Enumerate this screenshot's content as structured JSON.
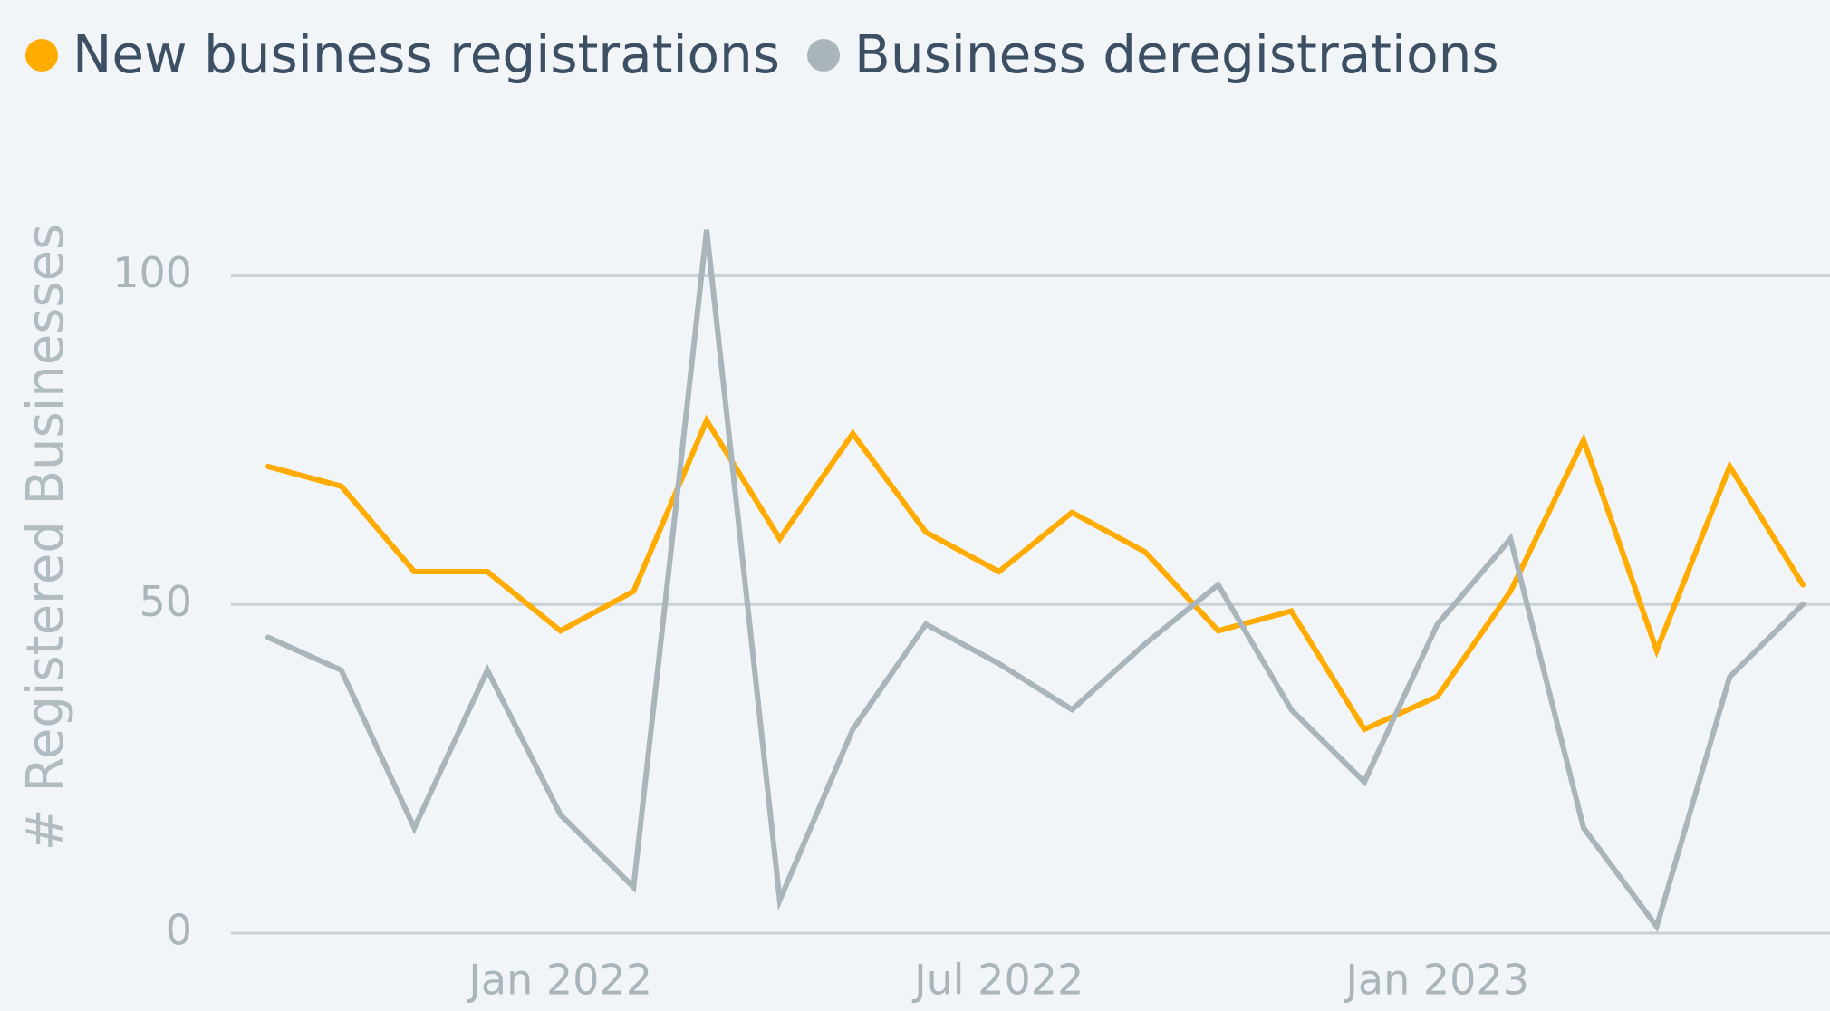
{
  "chart_data": {
    "type": "line",
    "ylabel": "# Registered Businesses",
    "x": [
      "2021-09",
      "2021-10",
      "2021-11",
      "2021-12",
      "2022-01",
      "2022-02",
      "2022-03",
      "2022-04",
      "2022-05",
      "2022-06",
      "2022-07",
      "2022-08",
      "2022-09",
      "2022-10",
      "2022-11",
      "2022-12",
      "2023-01",
      "2023-02",
      "2023-03",
      "2023-04",
      "2023-05",
      "2023-06"
    ],
    "series": [
      {
        "name": "New business registrations",
        "color": "#ffab00",
        "values": [
          71,
          68,
          55,
          55,
          46,
          52,
          78,
          60,
          76,
          61,
          55,
          64,
          58,
          46,
          49,
          31,
          36,
          52,
          75,
          43,
          71,
          53
        ]
      },
      {
        "name": "Business deregistrations",
        "color": "#a9b5bb",
        "values": [
          45,
          40,
          16,
          40,
          18,
          7,
          107,
          5,
          31,
          47,
          41,
          34,
          44,
          53,
          34,
          23,
          47,
          60,
          16,
          1,
          39,
          50
        ]
      }
    ],
    "ylim": [
      0,
      110
    ],
    "yticks": [
      0,
      50,
      100
    ],
    "xticks": [
      {
        "value": "2022-01",
        "label": "Jan 2022"
      },
      {
        "value": "2022-07",
        "label": "Jul 2022"
      },
      {
        "value": "2023-01",
        "label": "Jan 2023"
      }
    ],
    "grid": true,
    "legend": "top-left"
  }
}
